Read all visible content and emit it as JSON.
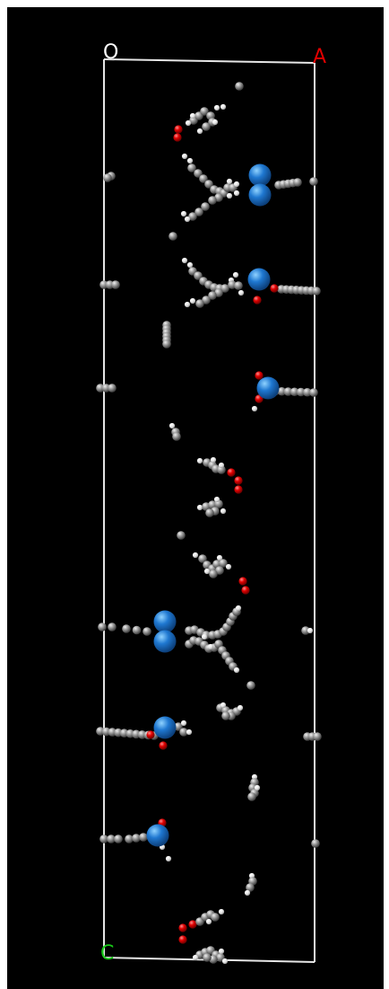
{
  "scene": {
    "background": "#000000",
    "page_background": "#ffffff",
    "cell_color": "#e6e6e6",
    "atom_colors": {
      "carbon": "#8a8a8a",
      "hydrogen": "#f2f2f2",
      "oxygen": "#e00000",
      "metal": "#1f78d1"
    }
  },
  "axes": {
    "origin_label": "O",
    "a_label": "A",
    "c_label": "C",
    "origin_color": "#ffffff",
    "a_color": "#e00000",
    "c_color": "#17c617"
  }
}
